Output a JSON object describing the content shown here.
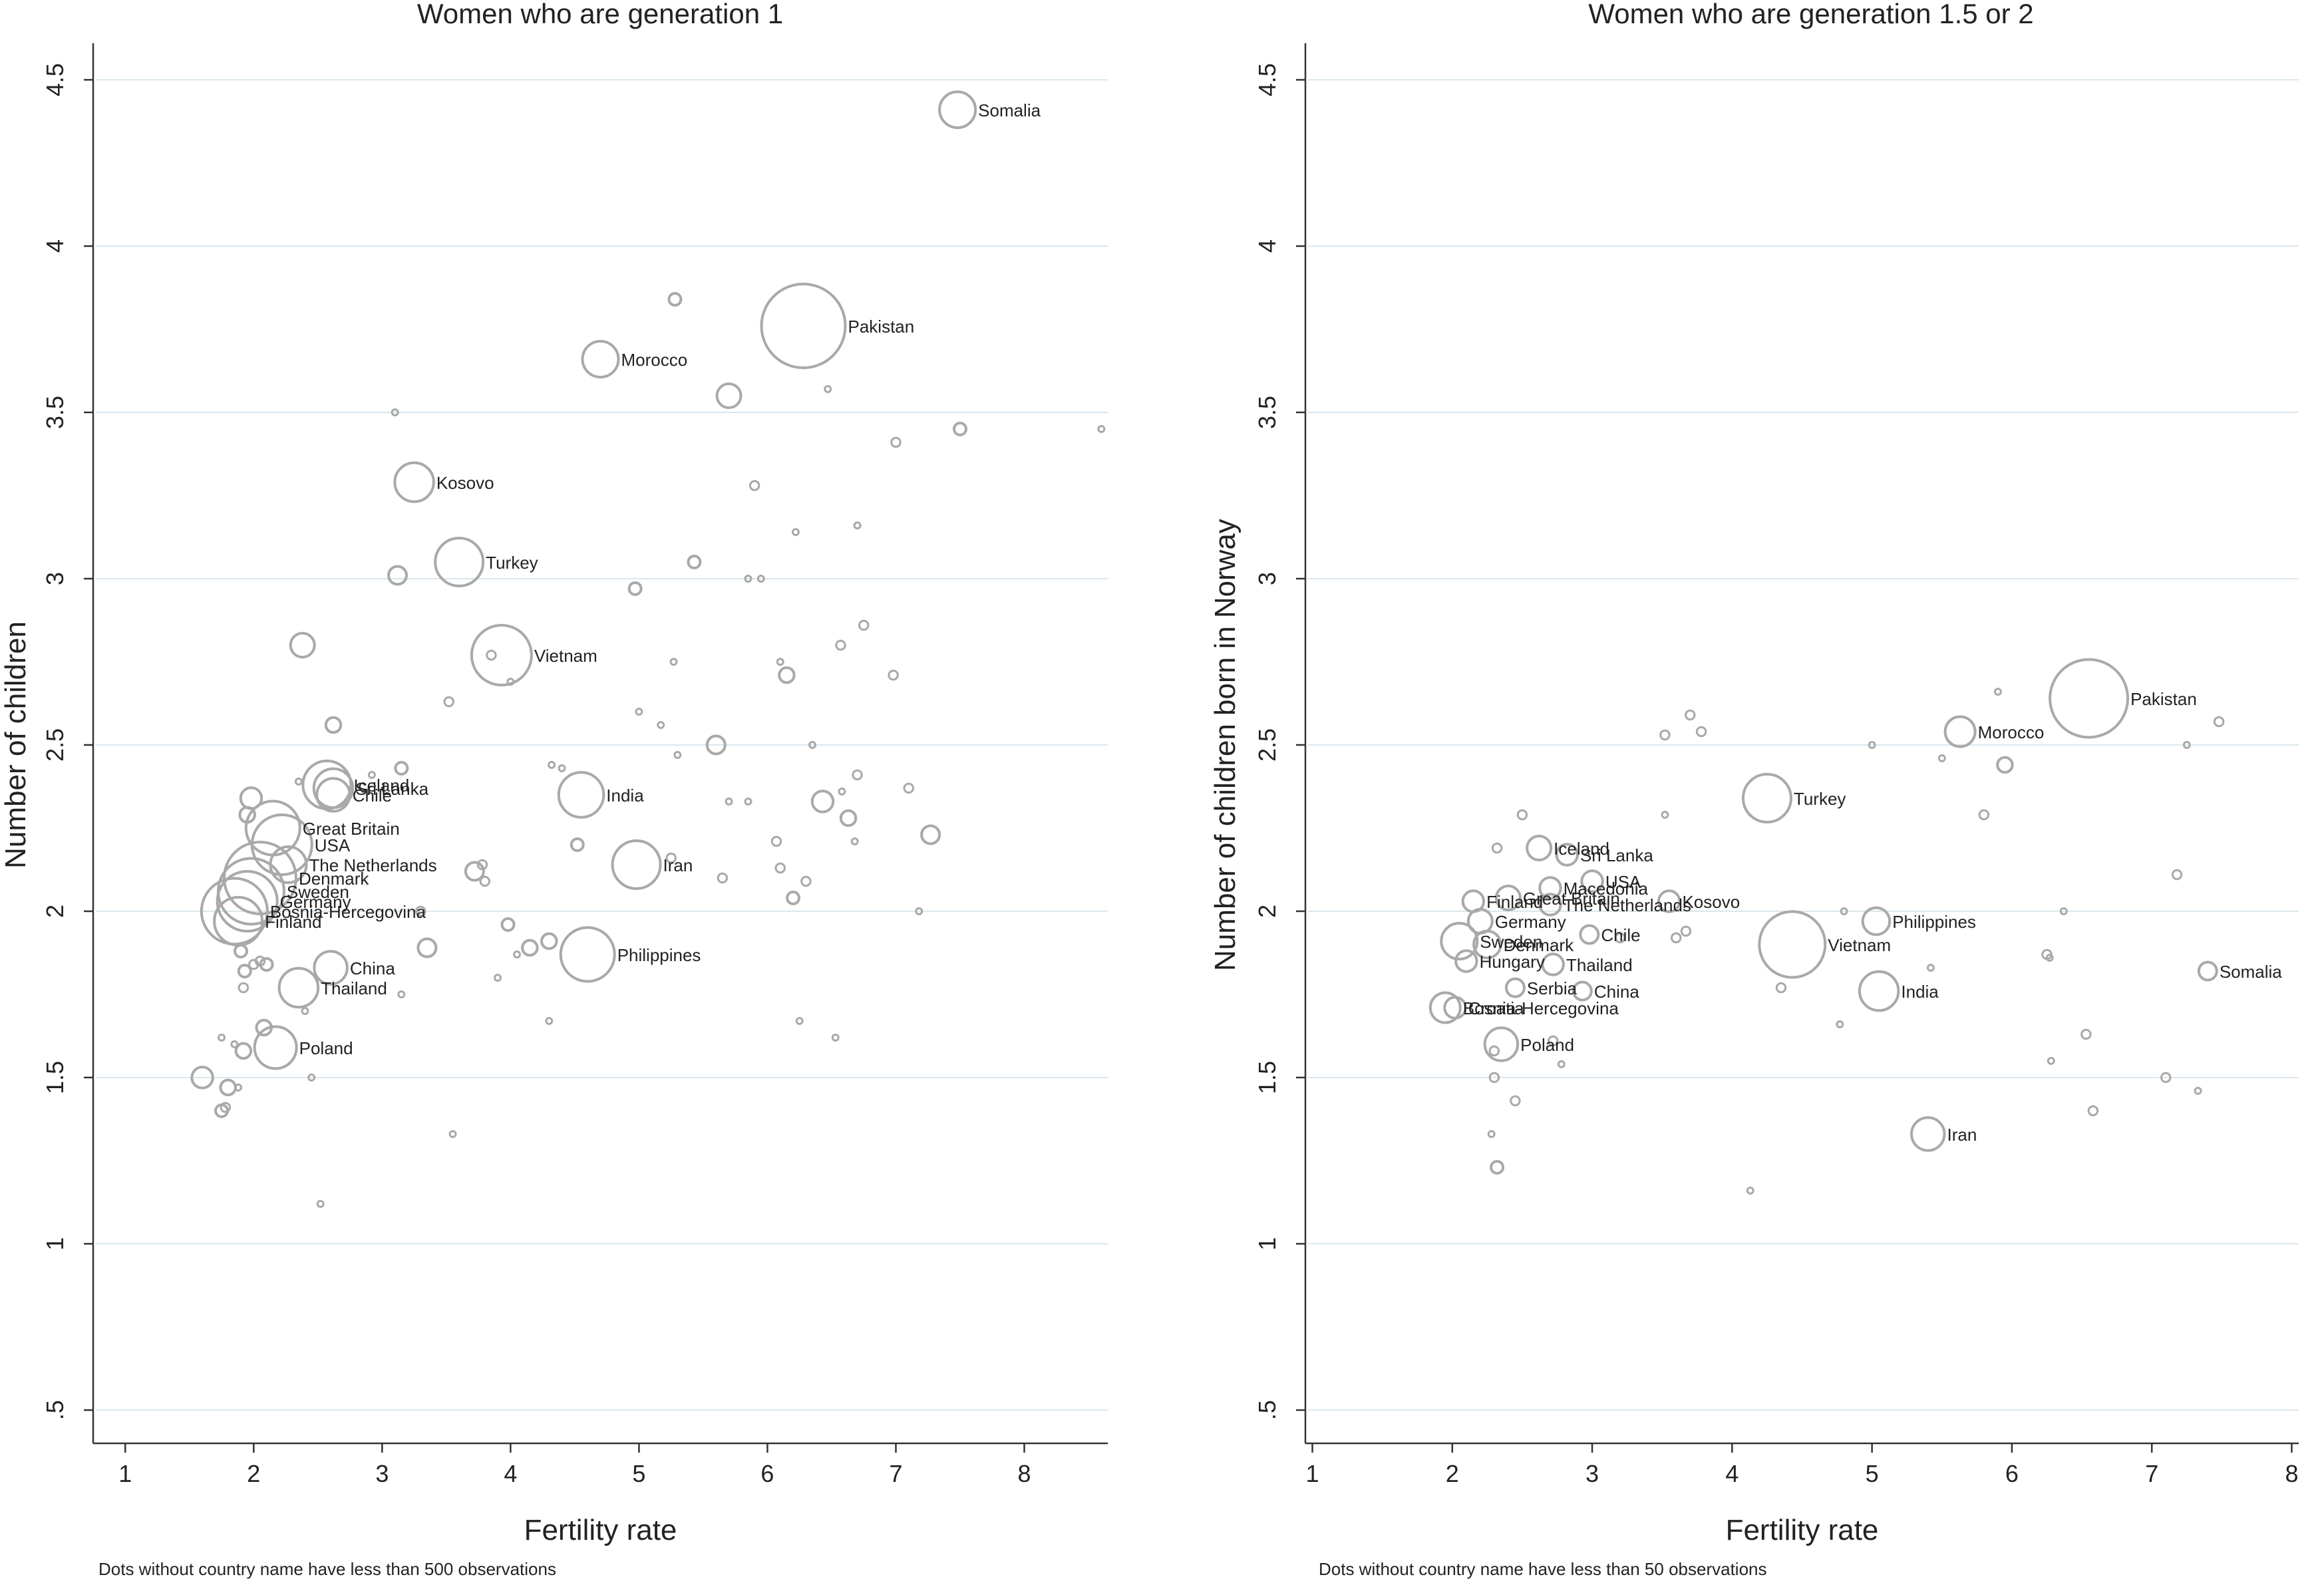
{
  "chart_data": [
    {
      "type": "scatter",
      "title": "Women who are generation 1",
      "xlabel": "Fertility rate",
      "ylabel": "Number of children",
      "xlim": [
        0.75,
        8.65
      ],
      "ylim": [
        0.4,
        4.6
      ],
      "xticks": [
        "1",
        "2",
        "3",
        "4",
        "5",
        "6",
        "7",
        "8"
      ],
      "yticks": [
        ".5",
        "1",
        "1.5",
        "2",
        "2.5",
        "3",
        "3.5",
        "4",
        "4.5"
      ],
      "grid": "horizontal",
      "note": "Dots without country name have less than 500 observations",
      "points": [
        {
          "label": "Somalia",
          "x": 7.48,
          "y": 4.41,
          "r": 12
        },
        {
          "label": "Pakistan",
          "x": 6.28,
          "y": 3.76,
          "r": 28
        },
        {
          "label": "Morocco",
          "x": 4.7,
          "y": 3.66,
          "r": 12
        },
        {
          "label": "Kosovo",
          "x": 3.25,
          "y": 3.29,
          "r": 13
        },
        {
          "label": "Turkey",
          "x": 3.6,
          "y": 3.05,
          "r": 16
        },
        {
          "label": "Vietnam",
          "x": 3.93,
          "y": 2.77,
          "r": 20
        },
        {
          "label": "Iceland",
          "x": 2.57,
          "y": 2.38,
          "r": 16
        },
        {
          "label": "Sri Lanka",
          "x": 2.62,
          "y": 2.37,
          "r": 13
        },
        {
          "label": "Chile",
          "x": 2.62,
          "y": 2.35,
          "r": 11
        },
        {
          "label": "India",
          "x": 4.55,
          "y": 2.35,
          "r": 15
        },
        {
          "label": "Great Britain",
          "x": 2.15,
          "y": 2.25,
          "r": 18
        },
        {
          "label": "USA",
          "x": 2.22,
          "y": 2.2,
          "r": 20
        },
        {
          "label": "Iran",
          "x": 4.98,
          "y": 2.14,
          "r": 16
        },
        {
          "label": "The Netherlands",
          "x": 2.27,
          "y": 2.14,
          "r": 12
        },
        {
          "label": "Denmark",
          "x": 2.05,
          "y": 2.1,
          "r": 24
        },
        {
          "label": "Sweden",
          "x": 1.98,
          "y": 2.06,
          "r": 22
        },
        {
          "label": "Germany",
          "x": 1.95,
          "y": 2.03,
          "r": 20
        },
        {
          "label": "Bosnia-Hercegovina",
          "x": 1.85,
          "y": 2.0,
          "r": 22
        },
        {
          "label": "Finland",
          "x": 1.88,
          "y": 1.97,
          "r": 16
        },
        {
          "label": "Philippines",
          "x": 4.6,
          "y": 1.87,
          "r": 18
        },
        {
          "label": "China",
          "x": 2.6,
          "y": 1.83,
          "r": 11
        },
        {
          "label": "Thailand",
          "x": 2.35,
          "y": 1.77,
          "r": 13
        },
        {
          "label": "Poland",
          "x": 2.17,
          "y": 1.59,
          "r": 14
        },
        {
          "label": "",
          "x": 5.28,
          "y": 3.84,
          "r": 4
        },
        {
          "label": "",
          "x": 5.7,
          "y": 3.55,
          "r": 8
        },
        {
          "label": "",
          "x": 6.47,
          "y": 3.57,
          "r": 2
        },
        {
          "label": "",
          "x": 3.1,
          "y": 3.5,
          "r": 2
        },
        {
          "label": "",
          "x": 7.0,
          "y": 3.41,
          "r": 3
        },
        {
          "label": "",
          "x": 7.5,
          "y": 3.45,
          "r": 4
        },
        {
          "label": "",
          "x": 8.6,
          "y": 3.45,
          "r": 2
        },
        {
          "label": "",
          "x": 5.9,
          "y": 3.28,
          "r": 3
        },
        {
          "label": "",
          "x": 6.22,
          "y": 3.14,
          "r": 2
        },
        {
          "label": "",
          "x": 6.7,
          "y": 3.16,
          "r": 2
        },
        {
          "label": "",
          "x": 3.12,
          "y": 3.01,
          "r": 6
        },
        {
          "label": "",
          "x": 5.43,
          "y": 3.05,
          "r": 4
        },
        {
          "label": "",
          "x": 5.85,
          "y": 3.0,
          "r": 2
        },
        {
          "label": "",
          "x": 5.95,
          "y": 3.0,
          "r": 2
        },
        {
          "label": "",
          "x": 4.97,
          "y": 2.97,
          "r": 4
        },
        {
          "label": "",
          "x": 2.38,
          "y": 2.8,
          "r": 8
        },
        {
          "label": "",
          "x": 3.85,
          "y": 2.77,
          "r": 3
        },
        {
          "label": "",
          "x": 5.27,
          "y": 2.75,
          "r": 2
        },
        {
          "label": "",
          "x": 6.1,
          "y": 2.75,
          "r": 2
        },
        {
          "label": "",
          "x": 6.15,
          "y": 2.71,
          "r": 5
        },
        {
          "label": "",
          "x": 6.57,
          "y": 2.8,
          "r": 3
        },
        {
          "label": "",
          "x": 6.75,
          "y": 2.86,
          "r": 3
        },
        {
          "label": "",
          "x": 6.98,
          "y": 2.71,
          "r": 3
        },
        {
          "label": "",
          "x": 4.0,
          "y": 2.69,
          "r": 2
        },
        {
          "label": "",
          "x": 3.52,
          "y": 2.63,
          "r": 3
        },
        {
          "label": "",
          "x": 5.0,
          "y": 2.6,
          "r": 2
        },
        {
          "label": "",
          "x": 2.62,
          "y": 2.56,
          "r": 5
        },
        {
          "label": "",
          "x": 5.17,
          "y": 2.56,
          "r": 2
        },
        {
          "label": "",
          "x": 5.6,
          "y": 2.5,
          "r": 6
        },
        {
          "label": "",
          "x": 6.35,
          "y": 2.5,
          "r": 2
        },
        {
          "label": "",
          "x": 5.3,
          "y": 2.47,
          "r": 2
        },
        {
          "label": "",
          "x": 4.32,
          "y": 2.44,
          "r": 2
        },
        {
          "label": "",
          "x": 4.4,
          "y": 2.43,
          "r": 2
        },
        {
          "label": "",
          "x": 3.15,
          "y": 2.43,
          "r": 4
        },
        {
          "label": "",
          "x": 2.35,
          "y": 2.39,
          "r": 2
        },
        {
          "label": "",
          "x": 2.92,
          "y": 2.41,
          "r": 2
        },
        {
          "label": "",
          "x": 6.7,
          "y": 2.41,
          "r": 3
        },
        {
          "label": "",
          "x": 7.1,
          "y": 2.37,
          "r": 3
        },
        {
          "label": "",
          "x": 6.58,
          "y": 2.36,
          "r": 2
        },
        {
          "label": "",
          "x": 6.43,
          "y": 2.33,
          "r": 7
        },
        {
          "label": "",
          "x": 5.7,
          "y": 2.33,
          "r": 2
        },
        {
          "label": "",
          "x": 5.85,
          "y": 2.33,
          "r": 2
        },
        {
          "label": "",
          "x": 1.98,
          "y": 2.34,
          "r": 7
        },
        {
          "label": "",
          "x": 1.95,
          "y": 2.29,
          "r": 5
        },
        {
          "label": "",
          "x": 6.63,
          "y": 2.28,
          "r": 5
        },
        {
          "label": "",
          "x": 7.27,
          "y": 2.23,
          "r": 6
        },
        {
          "label": "",
          "x": 6.68,
          "y": 2.21,
          "r": 2
        },
        {
          "label": "",
          "x": 6.07,
          "y": 2.21,
          "r": 3
        },
        {
          "label": "",
          "x": 4.52,
          "y": 2.2,
          "r": 4
        },
        {
          "label": "",
          "x": 5.25,
          "y": 2.16,
          "r": 3
        },
        {
          "label": "",
          "x": 3.72,
          "y": 2.12,
          "r": 6
        },
        {
          "label": "",
          "x": 3.78,
          "y": 2.14,
          "r": 3
        },
        {
          "label": "",
          "x": 3.8,
          "y": 2.09,
          "r": 3
        },
        {
          "label": "",
          "x": 5.65,
          "y": 2.1,
          "r": 3
        },
        {
          "label": "",
          "x": 6.1,
          "y": 2.13,
          "r": 3
        },
        {
          "label": "",
          "x": 6.3,
          "y": 2.09,
          "r": 3
        },
        {
          "label": "",
          "x": 6.2,
          "y": 2.04,
          "r": 4
        },
        {
          "label": "",
          "x": 7.18,
          "y": 2.0,
          "r": 2
        },
        {
          "label": "",
          "x": 3.3,
          "y": 2.0,
          "r": 3
        },
        {
          "label": "",
          "x": 3.98,
          "y": 1.96,
          "r": 4
        },
        {
          "label": "",
          "x": 4.3,
          "y": 1.91,
          "r": 5
        },
        {
          "label": "",
          "x": 4.15,
          "y": 1.89,
          "r": 5
        },
        {
          "label": "",
          "x": 4.05,
          "y": 1.87,
          "r": 2
        },
        {
          "label": "",
          "x": 3.35,
          "y": 1.89,
          "r": 6
        },
        {
          "label": "",
          "x": 3.9,
          "y": 1.8,
          "r": 2
        },
        {
          "label": "",
          "x": 3.15,
          "y": 1.75,
          "r": 2
        },
        {
          "label": "",
          "x": 2.4,
          "y": 1.7,
          "r": 2
        },
        {
          "label": "",
          "x": 4.3,
          "y": 1.67,
          "r": 2
        },
        {
          "label": "",
          "x": 6.25,
          "y": 1.67,
          "r": 2
        },
        {
          "label": "",
          "x": 6.53,
          "y": 1.62,
          "r": 2
        },
        {
          "label": "",
          "x": 1.75,
          "y": 1.62,
          "r": 2
        },
        {
          "label": "",
          "x": 2.08,
          "y": 1.65,
          "r": 5
        },
        {
          "label": "",
          "x": 1.92,
          "y": 1.58,
          "r": 5
        },
        {
          "label": "",
          "x": 1.85,
          "y": 1.6,
          "r": 2
        },
        {
          "label": "",
          "x": 2.45,
          "y": 1.5,
          "r": 2
        },
        {
          "label": "",
          "x": 1.6,
          "y": 1.5,
          "r": 7
        },
        {
          "label": "",
          "x": 1.8,
          "y": 1.47,
          "r": 5
        },
        {
          "label": "",
          "x": 1.88,
          "y": 1.47,
          "r": 2
        },
        {
          "label": "",
          "x": 1.75,
          "y": 1.4,
          "r": 4
        },
        {
          "label": "",
          "x": 1.78,
          "y": 1.41,
          "r": 3
        },
        {
          "label": "",
          "x": 1.92,
          "y": 1.77,
          "r": 3
        },
        {
          "label": "",
          "x": 1.93,
          "y": 1.82,
          "r": 4
        },
        {
          "label": "",
          "x": 2.05,
          "y": 1.85,
          "r": 3
        },
        {
          "label": "",
          "x": 2.1,
          "y": 1.84,
          "r": 4
        },
        {
          "label": "",
          "x": 2.0,
          "y": 1.84,
          "r": 3
        },
        {
          "label": "",
          "x": 1.9,
          "y": 1.88,
          "r": 4
        },
        {
          "label": "",
          "x": 3.55,
          "y": 1.33,
          "r": 2
        },
        {
          "label": "",
          "x": 2.52,
          "y": 1.12,
          "r": 2
        }
      ]
    },
    {
      "type": "scatter",
      "title": "Women who are generation 1.5 or 2",
      "xlabel": "Fertility rate",
      "ylabel": "Number of children born in Norway",
      "xlim": [
        0.95,
        8.05
      ],
      "ylim": [
        0.4,
        4.6
      ],
      "xticks": [
        "1",
        "2",
        "3",
        "4",
        "5",
        "6",
        "7",
        "8"
      ],
      "yticks": [
        ".5",
        "1",
        "1.5",
        "2",
        "2.5",
        "3",
        "3.5",
        "4",
        "4.5"
      ],
      "grid": "horizontal",
      "note": "Dots without country name have less than 50 observations",
      "points": [
        {
          "label": "Pakistan",
          "x": 6.55,
          "y": 2.64,
          "r": 26
        },
        {
          "label": "Morocco",
          "x": 5.63,
          "y": 2.54,
          "r": 10
        },
        {
          "label": "Turkey",
          "x": 4.25,
          "y": 2.34,
          "r": 16
        },
        {
          "label": "Iceland",
          "x": 2.62,
          "y": 2.19,
          "r": 8
        },
        {
          "label": "Sri Lanka",
          "x": 2.82,
          "y": 2.17,
          "r": 7
        },
        {
          "label": "USA",
          "x": 3.0,
          "y": 2.09,
          "r": 7
        },
        {
          "label": "Macedonia",
          "x": 2.7,
          "y": 2.07,
          "r": 7
        },
        {
          "label": "Kosovo",
          "x": 3.55,
          "y": 2.03,
          "r": 7
        },
        {
          "label": "Great Britain",
          "x": 2.4,
          "y": 2.04,
          "r": 8
        },
        {
          "label": "The Netherlands",
          "x": 2.7,
          "y": 2.02,
          "r": 7
        },
        {
          "label": "Finland",
          "x": 2.15,
          "y": 2.03,
          "r": 7
        },
        {
          "label": "Philippines",
          "x": 5.03,
          "y": 1.97,
          "r": 9
        },
        {
          "label": "Germany",
          "x": 2.2,
          "y": 1.97,
          "r": 8
        },
        {
          "label": "Chile",
          "x": 2.98,
          "y": 1.93,
          "r": 6
        },
        {
          "label": "Sweden",
          "x": 2.05,
          "y": 1.91,
          "r": 12
        },
        {
          "label": "Denmark",
          "x": 2.25,
          "y": 1.9,
          "r": 9
        },
        {
          "label": "Vietnam",
          "x": 4.43,
          "y": 1.9,
          "r": 22
        },
        {
          "label": "Hungary",
          "x": 2.1,
          "y": 1.85,
          "r": 7
        },
        {
          "label": "Thailand",
          "x": 2.72,
          "y": 1.84,
          "r": 7
        },
        {
          "label": "Somalia",
          "x": 7.4,
          "y": 1.82,
          "r": 6
        },
        {
          "label": "Serbia",
          "x": 2.45,
          "y": 1.77,
          "r": 6
        },
        {
          "label": "China",
          "x": 2.93,
          "y": 1.76,
          "r": 6
        },
        {
          "label": "India",
          "x": 5.05,
          "y": 1.76,
          "r": 13
        },
        {
          "label": "Croatia",
          "x": 2.02,
          "y": 1.71,
          "r": 7
        },
        {
          "label": "Bosnia-Hercegovina",
          "x": 1.95,
          "y": 1.71,
          "r": 10
        },
        {
          "label": "Poland",
          "x": 2.35,
          "y": 1.6,
          "r": 11
        },
        {
          "label": "Iran",
          "x": 5.4,
          "y": 1.33,
          "r": 11
        },
        {
          "label": "",
          "x": 2.5,
          "y": 2.29,
          "r": 3
        },
        {
          "label": "",
          "x": 2.32,
          "y": 2.19,
          "r": 3
        },
        {
          "label": "",
          "x": 3.52,
          "y": 2.29,
          "r": 2
        },
        {
          "label": "",
          "x": 3.52,
          "y": 2.53,
          "r": 3
        },
        {
          "label": "",
          "x": 3.7,
          "y": 2.59,
          "r": 3
        },
        {
          "label": "",
          "x": 3.78,
          "y": 2.54,
          "r": 3
        },
        {
          "label": "",
          "x": 5.0,
          "y": 2.5,
          "r": 2
        },
        {
          "label": "",
          "x": 5.5,
          "y": 2.46,
          "r": 2
        },
        {
          "label": "",
          "x": 5.95,
          "y": 2.44,
          "r": 5
        },
        {
          "label": "",
          "x": 5.9,
          "y": 2.66,
          "r": 2
        },
        {
          "label": "",
          "x": 7.48,
          "y": 2.57,
          "r": 3
        },
        {
          "label": "",
          "x": 7.25,
          "y": 2.5,
          "r": 2
        },
        {
          "label": "",
          "x": 5.8,
          "y": 2.29,
          "r": 3
        },
        {
          "label": "",
          "x": 7.18,
          "y": 2.11,
          "r": 3
        },
        {
          "label": "",
          "x": 6.37,
          "y": 2.0,
          "r": 2
        },
        {
          "label": "",
          "x": 4.8,
          "y": 2.0,
          "r": 2
        },
        {
          "label": "",
          "x": 6.25,
          "y": 1.87,
          "r": 3
        },
        {
          "label": "",
          "x": 6.27,
          "y": 1.86,
          "r": 2
        },
        {
          "label": "",
          "x": 3.6,
          "y": 1.92,
          "r": 3
        },
        {
          "label": "",
          "x": 3.67,
          "y": 1.94,
          "r": 3
        },
        {
          "label": "",
          "x": 3.2,
          "y": 1.92,
          "r": 3
        },
        {
          "label": "",
          "x": 5.42,
          "y": 1.83,
          "r": 2
        },
        {
          "label": "",
          "x": 4.35,
          "y": 1.77,
          "r": 3
        },
        {
          "label": "",
          "x": 4.77,
          "y": 1.66,
          "r": 2
        },
        {
          "label": "",
          "x": 6.53,
          "y": 1.63,
          "r": 3
        },
        {
          "label": "",
          "x": 6.28,
          "y": 1.55,
          "r": 2
        },
        {
          "label": "",
          "x": 7.1,
          "y": 1.5,
          "r": 3
        },
        {
          "label": "",
          "x": 7.33,
          "y": 1.46,
          "r": 2
        },
        {
          "label": "",
          "x": 6.58,
          "y": 1.4,
          "r": 3
        },
        {
          "label": "",
          "x": 2.72,
          "y": 1.61,
          "r": 3
        },
        {
          "label": "",
          "x": 2.78,
          "y": 1.54,
          "r": 2
        },
        {
          "label": "",
          "x": 2.3,
          "y": 1.58,
          "r": 3
        },
        {
          "label": "",
          "x": 2.3,
          "y": 1.5,
          "r": 3
        },
        {
          "label": "",
          "x": 2.45,
          "y": 1.43,
          "r": 3
        },
        {
          "label": "",
          "x": 2.28,
          "y": 1.33,
          "r": 2
        },
        {
          "label": "",
          "x": 2.32,
          "y": 1.23,
          "r": 4
        },
        {
          "label": "",
          "x": 4.13,
          "y": 1.16,
          "r": 2
        }
      ]
    }
  ]
}
